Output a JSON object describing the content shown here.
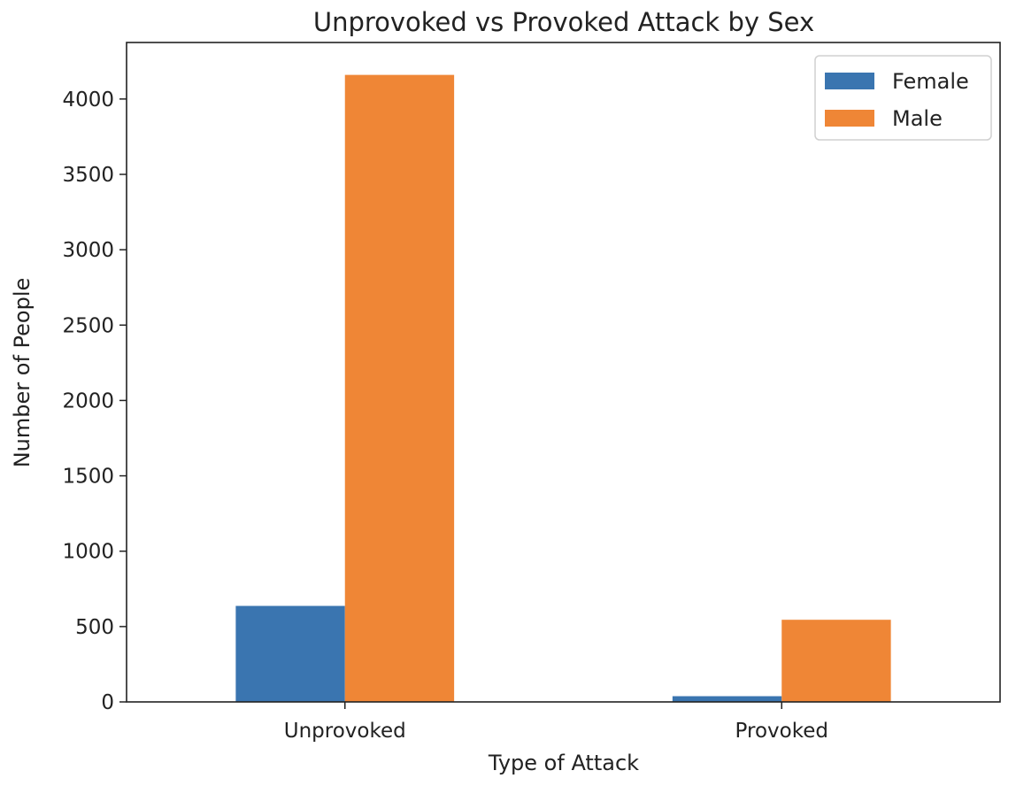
{
  "chart_data": {
    "type": "bar",
    "title": "Unprovoked vs Provoked Attack by Sex",
    "xlabel": "Type of Attack",
    "ylabel": "Number of People",
    "categories": [
      "Unprovoked",
      "Provoked"
    ],
    "series": [
      {
        "name": "Female",
        "values": [
          637,
          38
        ],
        "color": "#3a75b0"
      },
      {
        "name": "Male",
        "values": [
          4160,
          545
        ],
        "color": "#ef8636"
      }
    ],
    "ylim": [
      0,
      4375
    ],
    "yticks": [
      0,
      500,
      1000,
      1500,
      2000,
      2500,
      3000,
      3500,
      4000
    ],
    "grid": false,
    "legend_position": "top-right"
  }
}
